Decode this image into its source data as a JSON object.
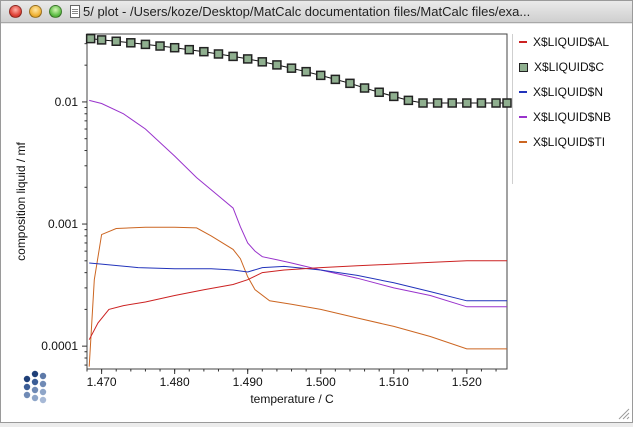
{
  "window": {
    "title": "5/ plot - /Users/koze/Desktop/MatCalc documentation files/MatCalc files/exa..."
  },
  "colors": {
    "al": "#cc2222",
    "c_marker_fill": "#8faf8f",
    "n": "#2233bb",
    "nb": "#9933cc",
    "ti": "#cc6622"
  },
  "chart_data": {
    "type": "line",
    "xlabel": "temperature / C",
    "ylabel": "composition liquid / mf",
    "x_scale": "linear",
    "y_scale": "log",
    "xlim": [
      1.468,
      1.5255
    ],
    "ylim": [
      6.5e-05,
      0.036
    ],
    "x_ticks": [
      1.47,
      1.48,
      1.49,
      1.5,
      1.51,
      1.52
    ],
    "x_tick_labels": [
      "1.470",
      "1.480",
      "1.490",
      "1.500",
      "1.510",
      "1.520"
    ],
    "y_ticks": [
      0.0001,
      0.001,
      0.01
    ],
    "y_tick_labels": [
      "0.0001",
      "0.001",
      "0.01"
    ],
    "grid": false,
    "legend_position": "right",
    "series": [
      {
        "name": "X$LIQUID$AL",
        "color": "#cc2222",
        "marker": "none",
        "x": [
          1.4683,
          1.4695,
          1.471,
          1.473,
          1.476,
          1.48,
          1.484,
          1.488,
          1.49,
          1.492,
          1.495,
          1.5,
          1.505,
          1.51,
          1.515,
          1.52,
          1.5255
        ],
        "y": [
          0.000113,
          0.000155,
          0.0002,
          0.000215,
          0.00023,
          0.00026,
          0.00029,
          0.00032,
          0.00035,
          0.0004,
          0.00042,
          0.00044,
          0.000455,
          0.00047,
          0.000485,
          0.0005,
          0.0005
        ]
      },
      {
        "name": "X$LIQUID$C",
        "color": "#111111",
        "marker": "square",
        "x": [
          1.4685,
          1.47,
          1.472,
          1.474,
          1.476,
          1.478,
          1.48,
          1.482,
          1.484,
          1.486,
          1.488,
          1.49,
          1.492,
          1.494,
          1.496,
          1.498,
          1.5,
          1.502,
          1.504,
          1.506,
          1.508,
          1.51,
          1.512,
          1.514,
          1.516,
          1.518,
          1.52,
          1.522,
          1.524,
          1.5255
        ],
        "y": [
          0.033,
          0.0322,
          0.0314,
          0.0305,
          0.0296,
          0.0287,
          0.0278,
          0.0268,
          0.0258,
          0.0247,
          0.0236,
          0.0225,
          0.0213,
          0.0201,
          0.0189,
          0.0177,
          0.0165,
          0.0153,
          0.0142,
          0.013,
          0.012,
          0.0111,
          0.0103,
          0.0098,
          0.0098,
          0.0098,
          0.0098,
          0.0098,
          0.0098,
          0.0098
        ]
      },
      {
        "name": "X$LIQUID$N",
        "color": "#2233bb",
        "marker": "none",
        "x": [
          1.4683,
          1.47,
          1.475,
          1.48,
          1.485,
          1.488,
          1.49,
          1.492,
          1.495,
          1.5,
          1.505,
          1.51,
          1.515,
          1.52,
          1.5255
        ],
        "y": [
          0.00048,
          0.00047,
          0.00044,
          0.00043,
          0.00043,
          0.00042,
          0.000405,
          0.00044,
          0.00045,
          0.00042,
          0.00038,
          0.00033,
          0.00028,
          0.000235,
          0.000235
        ]
      },
      {
        "name": "X$LIQUID$NB",
        "color": "#9933cc",
        "marker": "none",
        "x": [
          1.4683,
          1.47,
          1.473,
          1.476,
          1.48,
          1.483,
          1.486,
          1.488,
          1.489,
          1.49,
          1.491,
          1.492,
          1.494,
          1.496,
          1.5,
          1.505,
          1.51,
          1.515,
          1.52,
          1.5255
        ],
        "y": [
          0.0103,
          0.0097,
          0.008,
          0.006,
          0.0036,
          0.0024,
          0.0017,
          0.00135,
          0.00095,
          0.0007,
          0.0006,
          0.00054,
          0.00051,
          0.00048,
          0.00042,
          0.00036,
          0.0003,
          0.00026,
          0.00021,
          0.00021
        ]
      },
      {
        "name": "X$LIQUID$TI",
        "color": "#cc6622",
        "marker": "none",
        "x": [
          1.4683,
          1.469,
          1.47,
          1.472,
          1.476,
          1.48,
          1.483,
          1.485,
          1.488,
          1.489,
          1.49,
          1.491,
          1.493,
          1.496,
          1.5,
          1.505,
          1.51,
          1.515,
          1.52,
          1.5255
        ],
        "y": [
          6.8e-05,
          0.00035,
          0.00082,
          0.00092,
          0.00094,
          0.00094,
          0.00093,
          0.0008,
          0.00062,
          0.00052,
          0.00037,
          0.00029,
          0.000235,
          0.00022,
          0.0002,
          0.00017,
          0.000145,
          0.00012,
          9.5e-05,
          9.5e-05
        ]
      }
    ]
  }
}
